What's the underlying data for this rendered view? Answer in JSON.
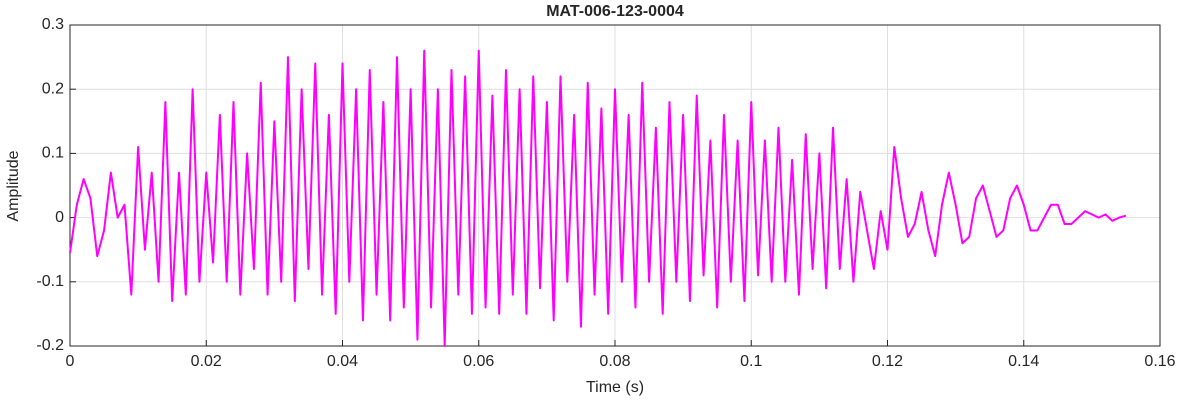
{
  "chart_data": {
    "type": "line",
    "title": "MAT-006-123-0004",
    "xlabel": "Time (s)",
    "ylabel": "Amplitude",
    "x": [
      0,
      0.001,
      0.002,
      0.003,
      0.004,
      0.005,
      0.006,
      0.007,
      0.008,
      0.009,
      0.01,
      0.011,
      0.012,
      0.013,
      0.014,
      0.015,
      0.016,
      0.017,
      0.018,
      0.019,
      0.02,
      0.021,
      0.022,
      0.023,
      0.024,
      0.025,
      0.026,
      0.027,
      0.028,
      0.029,
      0.03,
      0.031,
      0.032,
      0.033,
      0.034,
      0.035,
      0.036,
      0.037,
      0.038,
      0.039,
      0.04,
      0.041,
      0.042,
      0.043,
      0.044,
      0.045,
      0.046,
      0.047,
      0.048,
      0.049,
      0.05,
      0.051,
      0.052,
      0.053,
      0.054,
      0.055,
      0.056,
      0.057,
      0.058,
      0.059,
      0.06,
      0.061,
      0.062,
      0.063,
      0.064,
      0.065,
      0.066,
      0.067,
      0.068,
      0.069,
      0.07,
      0.071,
      0.072,
      0.073,
      0.074,
      0.075,
      0.076,
      0.077,
      0.078,
      0.079,
      0.08,
      0.081,
      0.082,
      0.083,
      0.084,
      0.085,
      0.086,
      0.087,
      0.088,
      0.089,
      0.09,
      0.091,
      0.092,
      0.093,
      0.094,
      0.095,
      0.096,
      0.097,
      0.098,
      0.099,
      0.1,
      0.101,
      0.102,
      0.103,
      0.104,
      0.105,
      0.106,
      0.107,
      0.108,
      0.109,
      0.11,
      0.111,
      0.112,
      0.113,
      0.114,
      0.115,
      0.116,
      0.117,
      0.118,
      0.119,
      0.12,
      0.121,
      0.122,
      0.123,
      0.124,
      0.125,
      0.126,
      0.127,
      0.128,
      0.129,
      0.13,
      0.131,
      0.132,
      0.133,
      0.134,
      0.135,
      0.136,
      0.137,
      0.138,
      0.139,
      0.14,
      0.141,
      0.142,
      0.143,
      0.144,
      0.145,
      0.146,
      0.147,
      0.148,
      0.149,
      0.15,
      0.151,
      0.152,
      0.153,
      0.154,
      0.155
    ],
    "series": [
      {
        "name": "Amplitude",
        "color": "#ff00ff",
        "values": [
          -0.055,
          0.02,
          0.06,
          0.03,
          -0.06,
          -0.02,
          0.07,
          0.0,
          0.02,
          -0.12,
          0.11,
          -0.05,
          0.07,
          -0.1,
          0.18,
          -0.13,
          0.07,
          -0.12,
          0.2,
          -0.1,
          0.07,
          -0.07,
          0.16,
          -0.1,
          0.18,
          -0.12,
          0.1,
          -0.08,
          0.21,
          -0.12,
          0.15,
          -0.1,
          0.25,
          -0.13,
          0.2,
          -0.08,
          0.24,
          -0.12,
          0.16,
          -0.15,
          0.24,
          -0.1,
          0.2,
          -0.16,
          0.23,
          -0.12,
          0.18,
          -0.16,
          0.25,
          -0.14,
          0.2,
          -0.19,
          0.26,
          -0.14,
          0.2,
          -0.2,
          0.23,
          -0.12,
          0.22,
          -0.15,
          0.26,
          -0.14,
          0.19,
          -0.15,
          0.23,
          -0.12,
          0.2,
          -0.15,
          0.22,
          -0.11,
          0.18,
          -0.16,
          0.22,
          -0.1,
          0.16,
          -0.17,
          0.21,
          -0.12,
          0.17,
          -0.15,
          0.2,
          -0.1,
          0.16,
          -0.14,
          0.21,
          -0.1,
          0.14,
          -0.15,
          0.18,
          -0.1,
          0.16,
          -0.13,
          0.19,
          -0.09,
          0.12,
          -0.14,
          0.16,
          -0.1,
          0.12,
          -0.13,
          0.18,
          -0.09,
          0.12,
          -0.1,
          0.14,
          -0.1,
          0.09,
          -0.12,
          0.13,
          -0.08,
          0.1,
          -0.11,
          0.14,
          -0.08,
          0.06,
          -0.1,
          0.04,
          -0.02,
          -0.08,
          0.01,
          -0.05,
          0.11,
          0.03,
          -0.03,
          -0.01,
          0.04,
          -0.02,
          -0.06,
          0.02,
          0.07,
          0.02,
          -0.04,
          -0.03,
          0.03,
          0.05,
          0.01,
          -0.03,
          -0.02,
          0.03,
          0.05,
          0.02,
          -0.02,
          -0.02,
          0.0,
          0.02,
          0.02,
          -0.01,
          -0.01,
          0.0,
          0.01,
          0.005,
          0.0,
          0.005,
          -0.005,
          0.0,
          0.003
        ]
      }
    ],
    "xlim": [
      0,
      0.16
    ],
    "xticks": [
      0,
      0.02,
      0.04,
      0.06,
      0.08,
      0.1,
      0.12,
      0.14,
      0.16
    ],
    "ylim": [
      -0.2,
      0.3
    ],
    "yticks": [
      -0.2,
      -0.1,
      0,
      0.1,
      0.2,
      0.3
    ],
    "grid": true
  }
}
